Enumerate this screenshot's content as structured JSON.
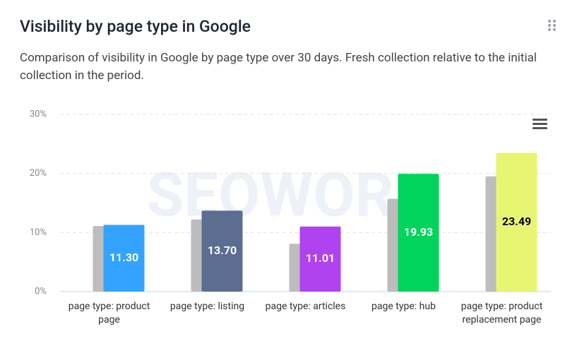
{
  "header": {
    "title": "Visibility by page type in Google",
    "subtitle": "Comparison of visibility in Google by page type over 30 days. Fresh collection relative to the initial collection in the period."
  },
  "watermark": "SEOWORK",
  "chart_data": {
    "type": "bar",
    "categories": [
      "page type: product page",
      "page type: listing",
      "page type: articles",
      "page type: hub",
      "page type: product replacement page"
    ],
    "series": [
      {
        "color": "#bdbdbd",
        "values": [
          11.1,
          12.2,
          8.1,
          15.7,
          19.5
        ]
      },
      {
        "colors": [
          "#33a3ff",
          "#5b6e91",
          "#b142f0",
          "#00d45a",
          "#e8f573"
        ],
        "values": [
          11.3,
          13.7,
          11.01,
          19.93,
          23.49
        ],
        "value_labels": [
          "11.30",
          "13.70",
          "11.01",
          "19.93",
          "23.49"
        ],
        "label_colors": [
          "#ffffff",
          "#ffffff",
          "#ffffff",
          "#ffffff",
          "#000000"
        ]
      }
    ],
    "ylim": [
      0,
      30
    ],
    "yticks": [
      {
        "value": 0,
        "label": "0%"
      },
      {
        "value": 10,
        "label": "10%"
      },
      {
        "value": 20,
        "label": "20%"
      },
      {
        "value": 30,
        "label": "30%"
      }
    ],
    "grid": true
  }
}
